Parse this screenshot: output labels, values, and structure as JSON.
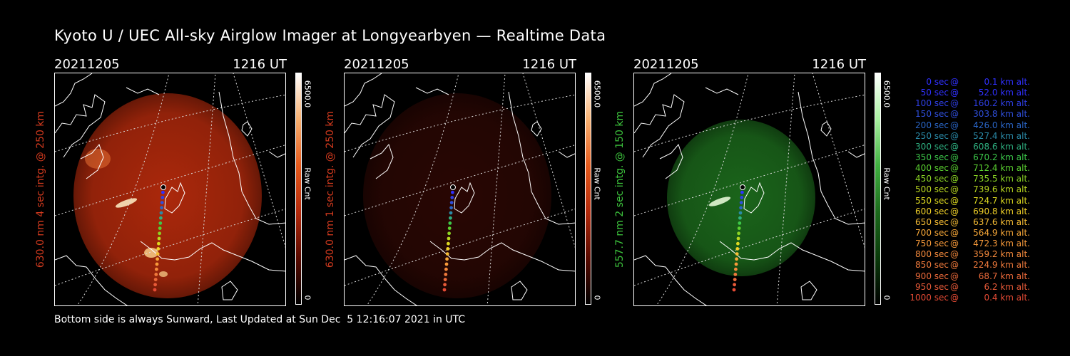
{
  "header": {
    "title": "Kyoto U / UEC All-sky Airglow Imager at Longyearbyen — Realtime Data"
  },
  "panels": [
    {
      "date": "20211205",
      "time": "1216 UT",
      "side_label": "630.0 nm 4 sec intg. @ 250 km",
      "label_color": "#d23a1e",
      "colorbar_max": "6500.0",
      "colorbar_unit": "Raw Cnt",
      "colorbar_min": "0",
      "tint": "#b42a0c",
      "intensity": "bright"
    },
    {
      "date": "20211205",
      "time": "1216 UT",
      "side_label": "630.0 nm 1 sec intg. @ 250 km",
      "label_color": "#d23a1e",
      "colorbar_max": "6500.0",
      "colorbar_unit": "Raw Cnt",
      "colorbar_min": "0",
      "tint": "#4a0c06",
      "intensity": "dim"
    },
    {
      "date": "20211205",
      "time": "1216 UT",
      "side_label": "557.7 nm 2 sec intg. @ 150 km",
      "label_color": "#3cc23c",
      "colorbar_max": "6500.0",
      "colorbar_unit": "Raw Cnt",
      "colorbar_min": "0",
      "tint": "#1c6a1c",
      "intensity": "medium"
    }
  ],
  "footer": {
    "text": "Bottom side is always Sunward, Last Updated at Sun Dec  5 12:16:07 2021 in UTC"
  },
  "legend": [
    {
      "sec": "0 sec",
      "km": "0.1 km alt.",
      "color": "#3030ff"
    },
    {
      "sec": "50 sec",
      "km": "52.0 km alt.",
      "color": "#3030ff"
    },
    {
      "sec": "100 sec",
      "km": "160.2 km alt.",
      "color": "#2f3fe6"
    },
    {
      "sec": "150 sec",
      "km": "303.8 km alt.",
      "color": "#2f4fdc"
    },
    {
      "sec": "200 sec",
      "km": "426.0 km alt.",
      "color": "#2a66c8"
    },
    {
      "sec": "250 sec",
      "km": "527.4 km alt.",
      "color": "#2a8aa8"
    },
    {
      "sec": "300 sec",
      "km": "608.6 km alt.",
      "color": "#2eb080"
    },
    {
      "sec": "350 sec",
      "km": "670.2 km alt.",
      "color": "#3cc84a"
    },
    {
      "sec": "400 sec",
      "km": "712.4 km alt.",
      "color": "#5ad030"
    },
    {
      "sec": "450 sec",
      "km": "735.5 km alt.",
      "color": "#8ad424"
    },
    {
      "sec": "500 sec",
      "km": "739.6 km alt.",
      "color": "#b8d620"
    },
    {
      "sec": "550 sec",
      "km": "724.7 km alt.",
      "color": "#dcd820"
    },
    {
      "sec": "600 sec",
      "km": "690.8 km alt.",
      "color": "#f0d028"
    },
    {
      "sec": "650 sec",
      "km": "637.6 km alt.",
      "color": "#f6bc34"
    },
    {
      "sec": "700 sec",
      "km": "564.9 km alt.",
      "color": "#f8a838"
    },
    {
      "sec": "750 sec",
      "km": "472.3 km alt.",
      "color": "#f89a3a"
    },
    {
      "sec": "800 sec",
      "km": "359.2 km alt.",
      "color": "#f58a3c"
    },
    {
      "sec": "850 sec",
      "km": "224.9 km alt.",
      "color": "#f07a3c"
    },
    {
      "sec": "900 sec",
      "km": "68.7 km alt.",
      "color": "#ec6a3a"
    },
    {
      "sec": "950 sec",
      "km": "6.2 km alt.",
      "color": "#e85a38"
    },
    {
      "sec": "1000 sec",
      "km": "0.4 km alt.",
      "color": "#e44a34"
    }
  ]
}
